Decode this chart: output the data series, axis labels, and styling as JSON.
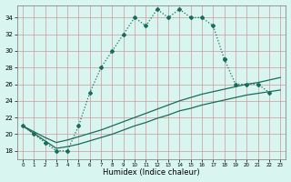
{
  "title": "",
  "xlabel": "Humidex (Indice chaleur)",
  "background_color": "#d8f5f0",
  "line_color": "#1a6b5a",
  "xlim": [
    -0.5,
    23.5
  ],
  "ylim": [
    17.0,
    35.5
  ],
  "xticks": [
    0,
    1,
    2,
    3,
    4,
    5,
    6,
    7,
    8,
    9,
    10,
    11,
    12,
    13,
    14,
    15,
    16,
    17,
    18,
    19,
    20,
    21,
    22,
    23
  ],
  "yticks": [
    18,
    20,
    22,
    24,
    26,
    28,
    30,
    32,
    34
  ],
  "curve1_x": [
    0,
    1,
    2,
    3,
    4,
    5,
    6,
    7,
    8,
    9,
    10,
    11,
    12,
    13,
    14,
    15,
    16,
    17,
    18
  ],
  "curve1_y": [
    21,
    20,
    19,
    18,
    18,
    21,
    25,
    28,
    30,
    32,
    34,
    33,
    35,
    34,
    35,
    34,
    34,
    33,
    29
  ],
  "curve2_x": [
    18,
    19,
    20,
    21,
    22
  ],
  "curve2_y": [
    29,
    26,
    26,
    26,
    25
  ],
  "curve3_x": [
    0,
    1,
    2,
    3,
    4,
    5,
    6,
    7,
    8,
    9,
    10,
    11,
    12,
    13,
    14,
    15,
    16,
    17,
    18,
    19,
    20,
    21,
    22,
    23
  ],
  "curve3_y": [
    21,
    20.3,
    19.6,
    19,
    19.3,
    19.7,
    20.1,
    20.5,
    21,
    21.5,
    22,
    22.5,
    23,
    23.5,
    24,
    24.4,
    24.8,
    25.1,
    25.4,
    25.7,
    26,
    26.2,
    26.5,
    26.8
  ],
  "curve4_x": [
    0,
    1,
    2,
    3,
    4,
    5,
    6,
    7,
    8,
    9,
    10,
    11,
    12,
    13,
    14,
    15,
    16,
    17,
    18,
    19,
    20,
    21,
    22,
    23
  ],
  "curve4_y": [
    21,
    20.1,
    19.2,
    18.3,
    18.5,
    18.8,
    19.2,
    19.6,
    20,
    20.5,
    21,
    21.4,
    21.9,
    22.3,
    22.8,
    23.1,
    23.5,
    23.8,
    24.1,
    24.4,
    24.7,
    24.9,
    25.1,
    25.3
  ]
}
